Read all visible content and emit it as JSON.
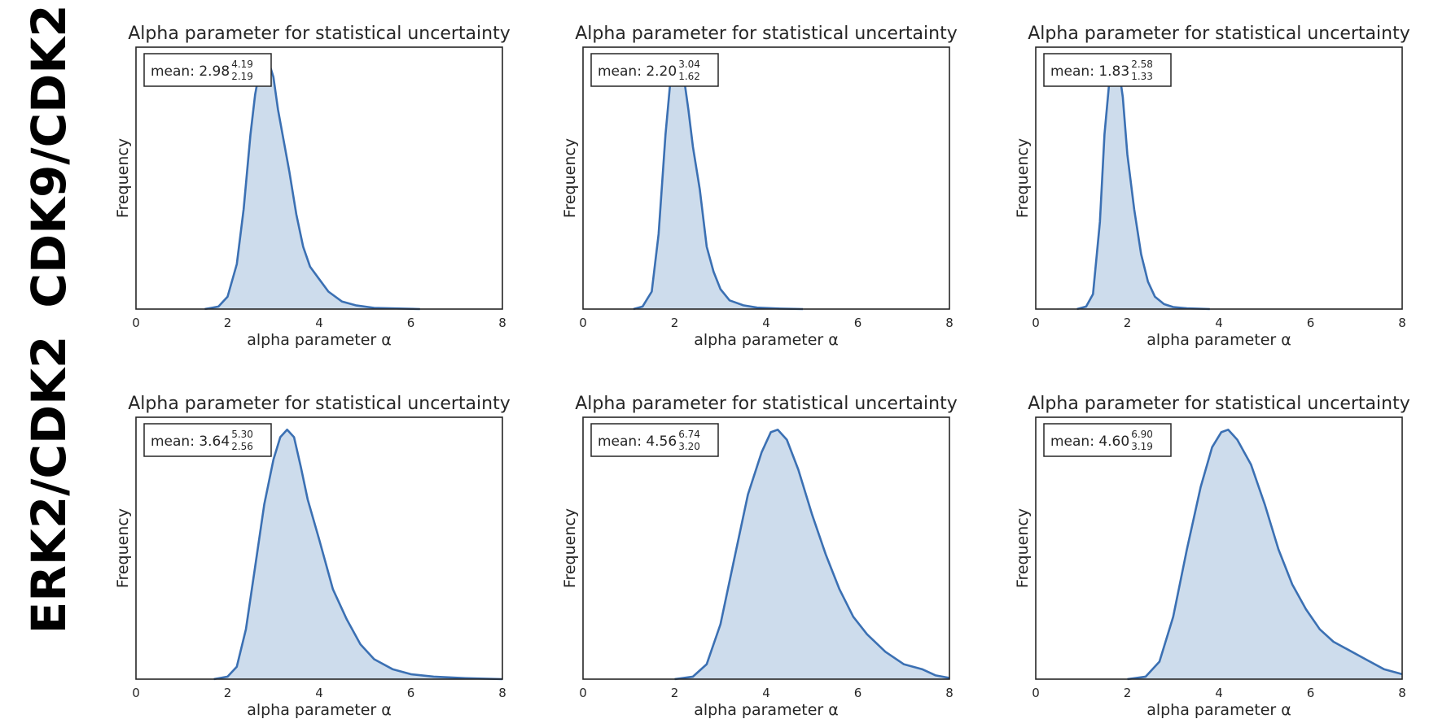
{
  "row_labels": [
    "CDK9/CDK2",
    "ERK2/CDK2"
  ],
  "colors": {
    "line": "#3b70b3",
    "fill": "#cddcec",
    "axes": "#262626"
  },
  "chart_data": [
    {
      "type": "area",
      "row": 0,
      "col": 0,
      "title": "Alpha parameter for statistical uncertainty",
      "xlabel": "alpha parameter α",
      "ylabel": "Frequency",
      "xlim": [
        0,
        8
      ],
      "xticks": [
        "0",
        "2",
        "4",
        "6",
        "8"
      ],
      "ylim": [
        0,
        1.05
      ],
      "grid": false,
      "legend": {
        "position": "top-left",
        "prefix": "mean: ",
        "mean": "2.98",
        "upper": "4.19",
        "lower": "2.19"
      },
      "x": [
        1.5,
        1.8,
        2.0,
        2.2,
        2.35,
        2.5,
        2.6,
        2.7,
        2.8,
        2.9,
        3.0,
        3.1,
        3.2,
        3.35,
        3.5,
        3.65,
        3.8,
        4.0,
        4.2,
        4.5,
        4.8,
        5.2,
        6.2
      ],
      "y": [
        0,
        0.01,
        0.05,
        0.18,
        0.4,
        0.7,
        0.86,
        0.96,
        1.0,
        0.99,
        0.93,
        0.8,
        0.7,
        0.55,
        0.38,
        0.25,
        0.17,
        0.12,
        0.07,
        0.03,
        0.015,
        0.005,
        0
      ]
    },
    {
      "type": "area",
      "row": 0,
      "col": 1,
      "title": "Alpha parameter for statistical uncertainty",
      "xlabel": "alpha parameter α",
      "ylabel": "Frequency",
      "xlim": [
        0,
        8
      ],
      "xticks": [
        "0",
        "2",
        "4",
        "6",
        "8"
      ],
      "ylim": [
        0,
        1.05
      ],
      "grid": false,
      "legend": {
        "position": "top-left",
        "prefix": "mean: ",
        "mean": "2.20",
        "upper": "3.04",
        "lower": "1.62"
      },
      "x": [
        1.1,
        1.3,
        1.5,
        1.65,
        1.8,
        1.9,
        2.0,
        2.1,
        2.2,
        2.3,
        2.4,
        2.55,
        2.7,
        2.85,
        3.0,
        3.2,
        3.35,
        3.5,
        3.8,
        4.3,
        4.8
      ],
      "y": [
        0,
        0.01,
        0.07,
        0.3,
        0.7,
        0.9,
        0.98,
        1.0,
        0.93,
        0.8,
        0.65,
        0.48,
        0.25,
        0.15,
        0.08,
        0.035,
        0.025,
        0.015,
        0.006,
        0.002,
        0
      ]
    },
    {
      "type": "area",
      "row": 0,
      "col": 2,
      "title": "Alpha parameter for statistical uncertainty",
      "xlabel": "alpha parameter α",
      "ylabel": "Frequency",
      "xlim": [
        0,
        8
      ],
      "xticks": [
        "0",
        "2",
        "4",
        "6",
        "8"
      ],
      "ylim": [
        0,
        1.05
      ],
      "grid": false,
      "legend": {
        "position": "top-left",
        "prefix": "mean: ",
        "mean": "1.83",
        "upper": "2.58",
        "lower": "1.33"
      },
      "x": [
        0.9,
        1.1,
        1.25,
        1.4,
        1.5,
        1.6,
        1.7,
        1.8,
        1.9,
        2.0,
        2.15,
        2.3,
        2.45,
        2.6,
        2.8,
        3.0,
        3.3,
        3.8
      ],
      "y": [
        0,
        0.01,
        0.06,
        0.35,
        0.7,
        0.9,
        1.0,
        0.98,
        0.85,
        0.62,
        0.4,
        0.22,
        0.11,
        0.05,
        0.02,
        0.008,
        0.003,
        0
      ]
    },
    {
      "type": "area",
      "row": 1,
      "col": 0,
      "title": "Alpha parameter for statistical uncertainty",
      "xlabel": "alpha parameter α",
      "ylabel": "Frequency",
      "xlim": [
        0,
        8
      ],
      "xticks": [
        "0",
        "2",
        "4",
        "6",
        "8"
      ],
      "ylim": [
        0,
        1.05
      ],
      "grid": false,
      "legend": {
        "position": "top-left",
        "prefix": "mean: ",
        "mean": "3.64",
        "upper": "5.30",
        "lower": "2.56"
      },
      "x": [
        1.7,
        2.0,
        2.2,
        2.4,
        2.6,
        2.8,
        3.0,
        3.15,
        3.3,
        3.45,
        3.6,
        3.75,
        4.0,
        4.3,
        4.6,
        4.9,
        5.2,
        5.6,
        6.0,
        6.5,
        7.2,
        8.0
      ],
      "y": [
        0,
        0.01,
        0.05,
        0.2,
        0.45,
        0.7,
        0.88,
        0.97,
        1.0,
        0.97,
        0.85,
        0.72,
        0.56,
        0.36,
        0.24,
        0.14,
        0.08,
        0.04,
        0.02,
        0.01,
        0.004,
        0
      ]
    },
    {
      "type": "area",
      "row": 1,
      "col": 1,
      "title": "Alpha parameter for statistical uncertainty",
      "xlabel": "alpha parameter α",
      "ylabel": "Frequency",
      "xlim": [
        0,
        8
      ],
      "xticks": [
        "0",
        "2",
        "4",
        "6",
        "8"
      ],
      "ylim": [
        0,
        1.05
      ],
      "grid": false,
      "legend": {
        "position": "top-left",
        "prefix": "mean: ",
        "mean": "4.56",
        "upper": "6.74",
        "lower": "3.20"
      },
      "x": [
        2.0,
        2.4,
        2.7,
        3.0,
        3.3,
        3.6,
        3.9,
        4.1,
        4.25,
        4.45,
        4.7,
        5.0,
        5.3,
        5.6,
        5.9,
        6.2,
        6.6,
        7.0,
        7.4,
        7.7,
        8.0
      ],
      "y": [
        0,
        0.01,
        0.06,
        0.22,
        0.48,
        0.74,
        0.91,
        0.99,
        1.0,
        0.96,
        0.84,
        0.66,
        0.5,
        0.36,
        0.25,
        0.18,
        0.11,
        0.06,
        0.04,
        0.015,
        0.005
      ]
    },
    {
      "type": "area",
      "row": 1,
      "col": 2,
      "title": "Alpha parameter for statistical uncertainty",
      "xlabel": "alpha parameter α",
      "ylabel": "Frequency",
      "xlim": [
        0,
        8
      ],
      "xticks": [
        "0",
        "2",
        "4",
        "6",
        "8"
      ],
      "ylim": [
        0,
        1.05
      ],
      "grid": false,
      "legend": {
        "position": "top-left",
        "prefix": "mean: ",
        "mean": "4.60",
        "upper": "6.90",
        "lower": "3.19"
      },
      "x": [
        2.0,
        2.4,
        2.7,
        3.0,
        3.3,
        3.6,
        3.85,
        4.05,
        4.2,
        4.4,
        4.7,
        5.0,
        5.3,
        5.6,
        5.9,
        6.2,
        6.5,
        6.8,
        7.2,
        7.6,
        8.0
      ],
      "y": [
        0,
        0.01,
        0.07,
        0.25,
        0.52,
        0.77,
        0.93,
        0.99,
        1.0,
        0.96,
        0.86,
        0.7,
        0.52,
        0.38,
        0.28,
        0.2,
        0.15,
        0.12,
        0.08,
        0.04,
        0.02
      ]
    }
  ]
}
